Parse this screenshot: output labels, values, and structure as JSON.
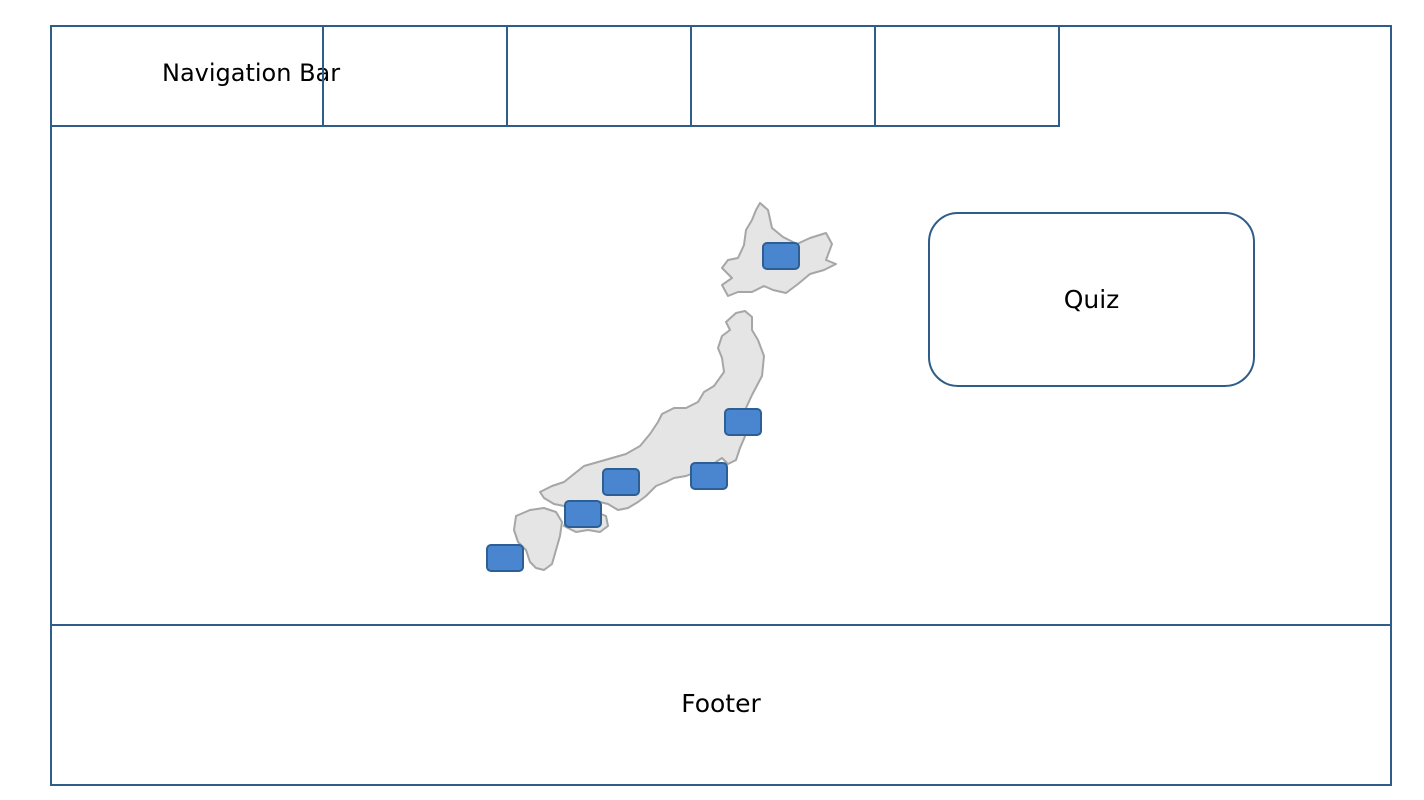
{
  "navigation": {
    "label": "Navigation Bar",
    "slots": [
      "",
      "",
      "",
      "",
      ""
    ]
  },
  "map": {
    "icon": "japan-map",
    "fill_color": "#e5e5e5",
    "stroke_color": "#a6a6a6",
    "markers": [
      {
        "region": "Hokkaido",
        "icon": "map-marker"
      },
      {
        "region": "Tohoku",
        "icon": "map-marker"
      },
      {
        "region": "Kanto",
        "icon": "map-marker"
      },
      {
        "region": "Kansai",
        "icon": "map-marker"
      },
      {
        "region": "Shikoku",
        "icon": "map-marker"
      },
      {
        "region": "Kyushu",
        "icon": "map-marker"
      }
    ]
  },
  "quiz": {
    "label": "Quiz"
  },
  "footer": {
    "label": "Footer"
  },
  "colors": {
    "border": "#2f5d8a",
    "marker_fill": "#4a86cf",
    "marker_border": "#2d5f95"
  }
}
